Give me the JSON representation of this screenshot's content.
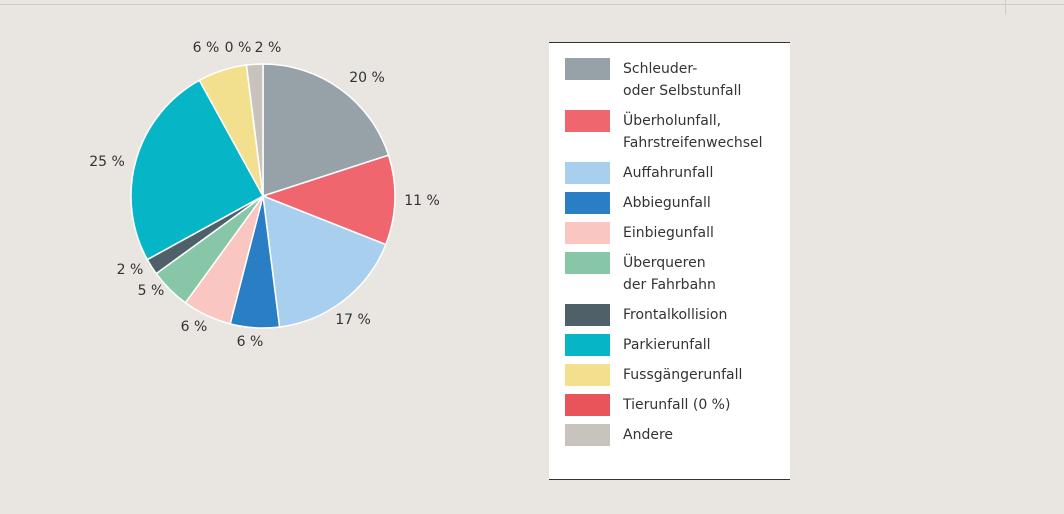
{
  "chart_data": {
    "type": "pie",
    "categories": [
      "Schleuder-\noder Selbstunfall",
      "Überholunfall,\nFahrstreifenwechsel",
      "Auffahrunfall",
      "Abbiegunfall",
      "Einbiegunfall",
      "Überqueren\nder Fahrbahn",
      "Frontalkollision",
      "Parkierunfall",
      "Fussgängerunfall",
      "Tierunfall (0 %)",
      "Andere"
    ],
    "values": [
      20,
      11,
      17,
      6,
      6,
      5,
      2,
      25,
      6,
      0,
      2
    ],
    "value_labels": [
      "20 %",
      "11 %",
      "17 %",
      "6 %",
      "6 %",
      "5 %",
      "2 %",
      "25 %",
      "6 %",
      "0 %",
      "2 %"
    ],
    "colors": [
      "#97a1a8",
      "#f0666f",
      "#a9cfee",
      "#2a7ec4",
      "#f9c6c2",
      "#87c7a8",
      "#4f6068",
      "#06b5c6",
      "#f3e08e",
      "#e8545a",
      "#c9c3bd"
    ]
  }
}
